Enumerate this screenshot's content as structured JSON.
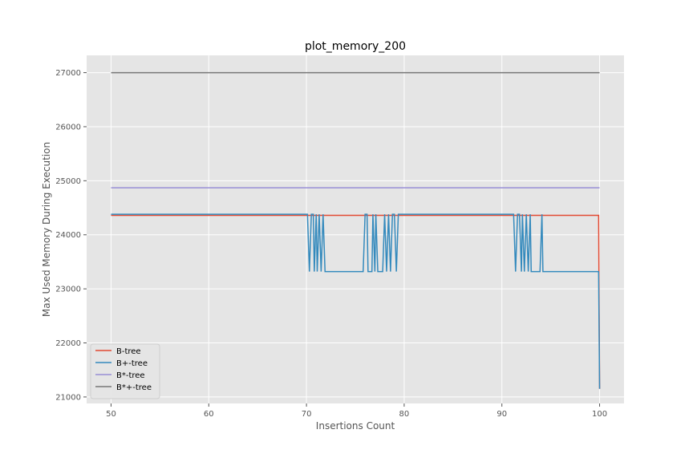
{
  "chart_data": {
    "type": "line",
    "title": "plot_memory_200",
    "xlabel": "Insertions Count",
    "ylabel": "Max Used Memory During Execution",
    "xlim": [
      47.5,
      102.5
    ],
    "ylim": [
      20880,
      27320
    ],
    "xticks": [
      50,
      60,
      70,
      80,
      90,
      100
    ],
    "yticks": [
      21000,
      22000,
      23000,
      24000,
      25000,
      26000,
      27000
    ],
    "grid": true,
    "legend_position": "bottom-left",
    "series": [
      {
        "name": "B-tree",
        "color": "#E24A33",
        "points": [
          [
            50,
            24360
          ],
          [
            99.9,
            24360
          ],
          [
            100,
            21150
          ]
        ]
      },
      {
        "name": "B+-tree",
        "color": "#348ABD",
        "points": [
          [
            50,
            24380
          ],
          [
            70.1,
            24380
          ],
          [
            70.3,
            23320
          ],
          [
            70.5,
            24380
          ],
          [
            70.7,
            24380
          ],
          [
            70.8,
            23320
          ],
          [
            71.0,
            24380
          ],
          [
            71.1,
            23320
          ],
          [
            71.3,
            24380
          ],
          [
            71.5,
            23320
          ],
          [
            71.7,
            24380
          ],
          [
            71.9,
            23320
          ],
          [
            75.8,
            23320
          ],
          [
            76.0,
            24380
          ],
          [
            76.2,
            24380
          ],
          [
            76.3,
            23320
          ],
          [
            76.7,
            23320
          ],
          [
            76.8,
            24380
          ],
          [
            77.0,
            23320
          ],
          [
            77.1,
            24380
          ],
          [
            77.3,
            23320
          ],
          [
            77.8,
            23320
          ],
          [
            78.0,
            24380
          ],
          [
            78.2,
            23320
          ],
          [
            78.4,
            24380
          ],
          [
            78.6,
            23320
          ],
          [
            78.8,
            24380
          ],
          [
            79.0,
            24380
          ],
          [
            79.2,
            23320
          ],
          [
            79.4,
            24380
          ],
          [
            91.2,
            24380
          ],
          [
            91.4,
            23320
          ],
          [
            91.6,
            24380
          ],
          [
            91.8,
            24380
          ],
          [
            92.0,
            23320
          ],
          [
            92.1,
            24380
          ],
          [
            92.3,
            23320
          ],
          [
            92.5,
            24380
          ],
          [
            92.7,
            23320
          ],
          [
            92.9,
            24380
          ],
          [
            93.0,
            23320
          ],
          [
            93.9,
            23320
          ],
          [
            94.1,
            24380
          ],
          [
            94.2,
            23320
          ],
          [
            99.9,
            23320
          ],
          [
            100,
            21150
          ]
        ]
      },
      {
        "name": "B*-tree",
        "color": "#988ED5",
        "points": [
          [
            50,
            24870
          ],
          [
            100,
            24870
          ]
        ]
      },
      {
        "name": "B*+-tree",
        "color": "#777777",
        "points": [
          [
            50,
            27000
          ],
          [
            100,
            27000
          ]
        ]
      }
    ]
  }
}
